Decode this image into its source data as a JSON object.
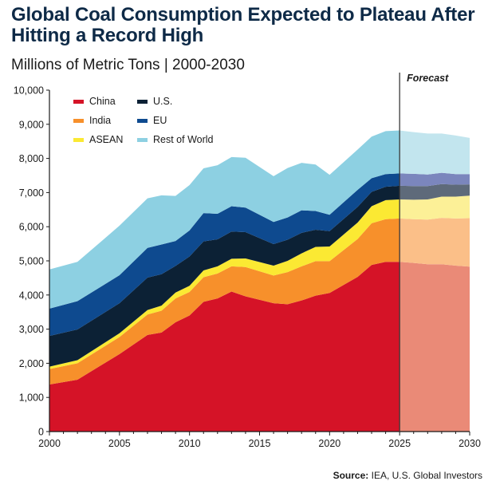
{
  "chart_data": {
    "type": "area",
    "stacked": true,
    "title": "Global Coal Consumption Expected to Plateau After Hitting a Record High",
    "subtitle": "Millions of Metric Tons | 2000-2030",
    "source_label": "Source:",
    "source_text": "IEA, U.S. Global Investors",
    "annotation": "Forecast",
    "forecast_start": 2025,
    "xlim": [
      2000,
      2030
    ],
    "ylim": [
      0,
      10000
    ],
    "x_ticks": [
      2000,
      2005,
      2010,
      2015,
      2020,
      2025,
      2030
    ],
    "y_ticks": [
      0,
      1000,
      2000,
      3000,
      4000,
      5000,
      6000,
      7000,
      8000,
      9000,
      10000
    ],
    "y_tick_labels": [
      "0",
      "1,000",
      "2,000",
      "3,000",
      "4,000",
      "5,000",
      "6,000",
      "7,000",
      "8,000",
      "9,000",
      "10,000"
    ],
    "legend_position": "top-left",
    "x": [
      2000,
      2002,
      2005,
      2007,
      2008,
      2009,
      2010,
      2011,
      2012,
      2013,
      2014,
      2016,
      2017,
      2018,
      2019,
      2020,
      2022,
      2023,
      2024,
      2025,
      2026,
      2027,
      2028,
      2029,
      2030
    ],
    "series": [
      {
        "name": "China",
        "color": "#d51327",
        "forecast_color": "#ea8a77",
        "values": [
          1380,
          1520,
          2270,
          2830,
          2900,
          3200,
          3400,
          3800,
          3900,
          4100,
          3960,
          3760,
          3730,
          3840,
          3980,
          4060,
          4530,
          4880,
          4970,
          4970,
          4940,
          4900,
          4900,
          4860,
          4830
        ]
      },
      {
        "name": "India",
        "color": "#f7902b",
        "forecast_color": "#fbbf88",
        "values": [
          450,
          480,
          500,
          600,
          640,
          700,
          690,
          720,
          730,
          740,
          860,
          810,
          940,
          1000,
          1010,
          930,
          1110,
          1220,
          1250,
          1270,
          1280,
          1310,
          1360,
          1380,
          1420
        ]
      },
      {
        "name": "ASEAN",
        "color": "#fbe933",
        "forecast_color": "#fcf097",
        "values": [
          70,
          90,
          110,
          130,
          150,
          170,
          180,
          200,
          210,
          220,
          250,
          290,
          330,
          380,
          420,
          430,
          480,
          500,
          560,
          560,
          570,
          590,
          620,
          640,
          660
        ]
      },
      {
        "name": "U.S.",
        "color": "#0c2135",
        "forecast_color": "#5e6a7a",
        "values": [
          900,
          900,
          880,
          950,
          920,
          780,
          860,
          850,
          790,
          800,
          770,
          630,
          620,
          600,
          500,
          450,
          460,
          420,
          390,
          400,
          400,
          390,
          370,
          350,
          330
        ]
      },
      {
        "name": "EU",
        "color": "#0e4a8f",
        "forecast_color": "#7b86bd",
        "values": [
          800,
          830,
          820,
          870,
          870,
          730,
          760,
          830,
          750,
          740,
          720,
          650,
          650,
          660,
          550,
          480,
          500,
          400,
          370,
          360,
          360,
          340,
          330,
          310,
          300
        ]
      },
      {
        "name": "Rest of World",
        "color": "#8dd0e2",
        "forecast_color": "#c2e5ee",
        "values": [
          1150,
          1150,
          1450,
          1450,
          1440,
          1320,
          1330,
          1310,
          1420,
          1440,
          1460,
          1340,
          1450,
          1390,
          1360,
          1170,
          1180,
          1220,
          1260,
          1260,
          1220,
          1200,
          1150,
          1130,
          1060
        ]
      }
    ]
  }
}
